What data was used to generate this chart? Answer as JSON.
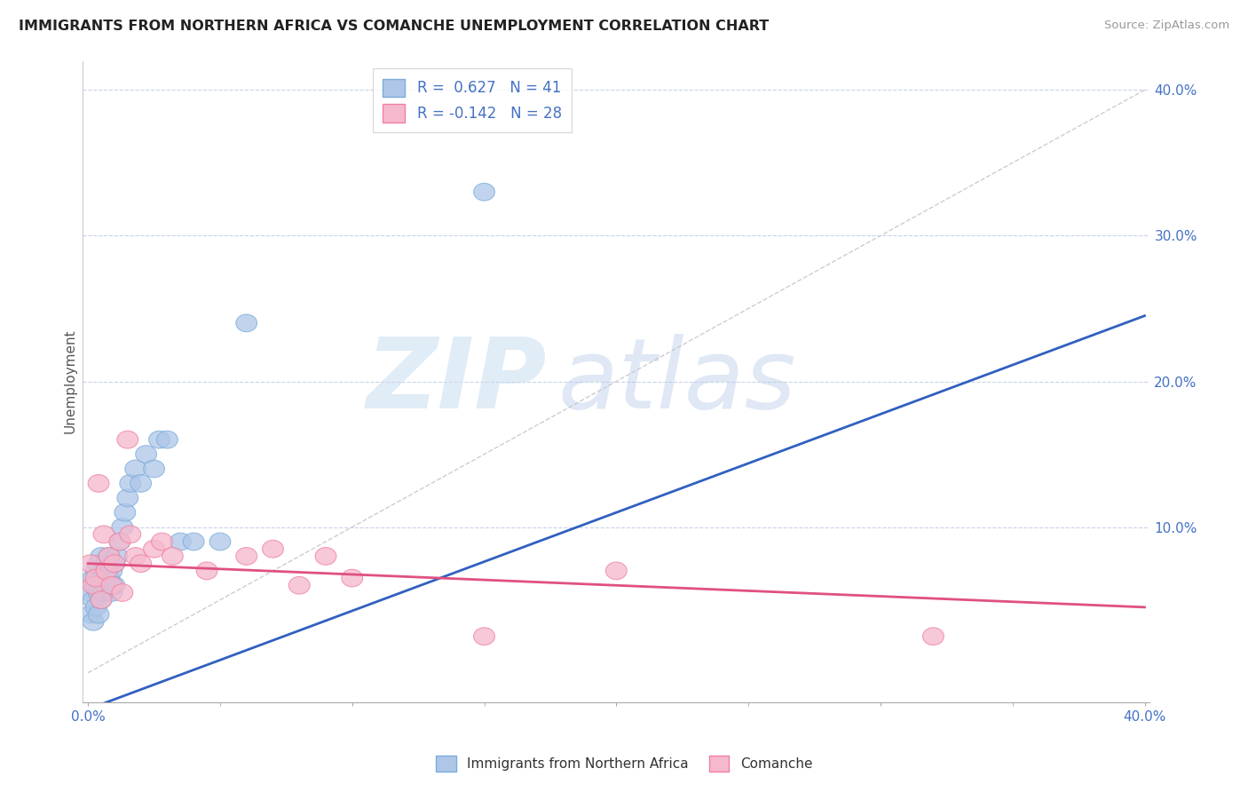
{
  "title": "IMMIGRANTS FROM NORTHERN AFRICA VS COMANCHE UNEMPLOYMENT CORRELATION CHART",
  "source_text": "Source: ZipAtlas.com",
  "ylabel": "Unemployment",
  "watermark_zip": "ZIP",
  "watermark_atlas": "atlas",
  "xlim": [
    -0.002,
    0.402
  ],
  "ylim": [
    -0.02,
    0.42
  ],
  "legend1_label": "Immigrants from Northern Africa",
  "legend2_label": "Comanche",
  "R1": "0.627",
  "N1": "41",
  "R2": "-0.142",
  "N2": "28",
  "blue_fill": "#aec6e8",
  "blue_edge": "#7aadda",
  "pink_fill": "#f5b8cc",
  "pink_edge": "#f080a0",
  "trend_blue": "#3060c0",
  "trend_pink": "#e05080",
  "ref_line_color": "#c8c8c8",
  "grid_color": "#c8d4e8",
  "blue_points_x": [
    0.001,
    0.001,
    0.002,
    0.002,
    0.002,
    0.003,
    0.003,
    0.003,
    0.004,
    0.004,
    0.004,
    0.005,
    0.005,
    0.005,
    0.006,
    0.006,
    0.007,
    0.007,
    0.008,
    0.008,
    0.009,
    0.009,
    0.01,
    0.01,
    0.011,
    0.012,
    0.013,
    0.014,
    0.015,
    0.016,
    0.018,
    0.02,
    0.022,
    0.025,
    0.027,
    0.03,
    0.035,
    0.04,
    0.05,
    0.06,
    0.15
  ],
  "blue_points_y": [
    0.055,
    0.04,
    0.065,
    0.05,
    0.035,
    0.07,
    0.06,
    0.045,
    0.075,
    0.055,
    0.04,
    0.08,
    0.065,
    0.05,
    0.07,
    0.055,
    0.075,
    0.06,
    0.08,
    0.065,
    0.07,
    0.055,
    0.075,
    0.06,
    0.08,
    0.09,
    0.1,
    0.11,
    0.12,
    0.13,
    0.14,
    0.13,
    0.15,
    0.14,
    0.16,
    0.16,
    0.09,
    0.09,
    0.09,
    0.24,
    0.33
  ],
  "pink_points_x": [
    0.001,
    0.002,
    0.003,
    0.004,
    0.005,
    0.006,
    0.007,
    0.008,
    0.009,
    0.01,
    0.012,
    0.013,
    0.015,
    0.016,
    0.018,
    0.02,
    0.025,
    0.028,
    0.032,
    0.045,
    0.06,
    0.07,
    0.08,
    0.09,
    0.1,
    0.15,
    0.2,
    0.32
  ],
  "pink_points_y": [
    0.075,
    0.06,
    0.065,
    0.13,
    0.05,
    0.095,
    0.07,
    0.08,
    0.06,
    0.075,
    0.09,
    0.055,
    0.16,
    0.095,
    0.08,
    0.075,
    0.085,
    0.09,
    0.08,
    0.07,
    0.08,
    0.085,
    0.06,
    0.08,
    0.065,
    0.025,
    0.07,
    0.025
  ],
  "blue_trend_x0": 0.0,
  "blue_trend_y0": -0.025,
  "blue_trend_x1": 0.4,
  "blue_trend_y1": 0.245,
  "pink_trend_x0": 0.0,
  "pink_trend_y0": 0.075,
  "pink_trend_x1": 0.4,
  "pink_trend_y1": 0.045
}
